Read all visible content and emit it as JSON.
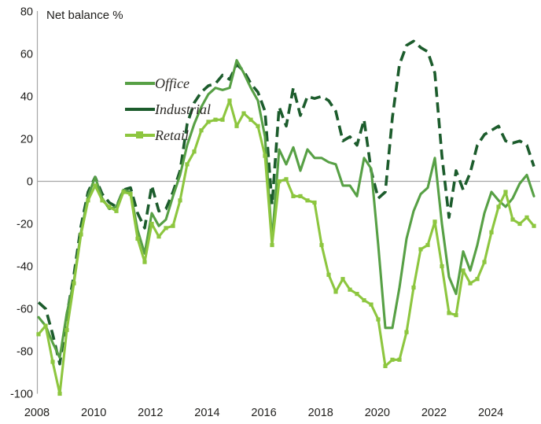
{
  "chart_data": {
    "type": "line",
    "title": "Net balance %",
    "frequency": "quarterly",
    "start_quarter": "2008 Q1",
    "end_quarter": "2025 Q3",
    "grid": "zero-line-only",
    "legend_position": "upper-left-inside",
    "colors": {
      "office": "#57a045",
      "industrial": "#1c5c2c",
      "retail": "#8dc63f",
      "axis": "#a6a6a6",
      "text": "#1f1e1c"
    },
    "x_axis": {
      "tick_years": [
        2008,
        2010,
        2012,
        2014,
        2016,
        2018,
        2020,
        2022,
        2024
      ]
    },
    "y_axis": {
      "ticks": [
        80,
        60,
        40,
        20,
        0,
        -20,
        -40,
        -60,
        -80,
        -100
      ],
      "ylim": [
        -100,
        80
      ]
    },
    "series": [
      {
        "name": "Office",
        "style": "solid",
        "color": "#57a045",
        "values": [
          -64,
          -68,
          -76,
          -83,
          -62,
          -47,
          -24,
          -7,
          2,
          -8,
          -13,
          -12,
          -4,
          -5,
          -23,
          -34,
          -15,
          -21,
          -18,
          -7,
          3,
          17,
          27,
          35,
          41,
          44,
          43,
          44,
          57,
          51,
          44,
          38,
          21,
          -28,
          15,
          8,
          16,
          5,
          15,
          11,
          11,
          9,
          8,
          -2,
          -2,
          -7,
          11,
          6,
          -30,
          -69,
          -69,
          -50,
          -27,
          -14,
          -6,
          -3,
          11,
          -20,
          -45,
          -53,
          -33,
          -42,
          -30,
          -15,
          -5,
          -9,
          -12,
          -8,
          -1,
          3,
          -7
        ]
      },
      {
        "name": "Industrial",
        "style": "dashed",
        "color": "#1c5c2c",
        "values": [
          -57,
          -60,
          -72,
          -86,
          -63,
          -44,
          -21,
          -5,
          2,
          -6,
          -10,
          -12,
          -4,
          -3,
          -15,
          -22,
          -2,
          -14,
          -13,
          -5,
          5,
          27,
          37,
          42,
          45,
          46,
          50,
          48,
          55,
          52,
          46,
          42,
          33,
          -11,
          35,
          26,
          44,
          31,
          40,
          39,
          40,
          38,
          33,
          19,
          21,
          17,
          29,
          5,
          -8,
          -5,
          30,
          55,
          64,
          66,
          63,
          61,
          51,
          12,
          -17,
          5,
          -4,
          4,
          17,
          22,
          24,
          26,
          19,
          18,
          19,
          17,
          7
        ]
      },
      {
        "name": "Retail",
        "style": "solid-square-markers",
        "color": "#8dc63f",
        "values": [
          -72,
          -68,
          -85,
          -100,
          -70,
          -48,
          -25,
          -9,
          -2,
          -9,
          -12,
          -14,
          -5,
          -6,
          -27,
          -38,
          -20,
          -26,
          -22,
          -21,
          -9,
          8,
          14,
          24,
          28,
          29,
          29,
          38,
          26,
          32,
          29,
          26,
          12,
          -30,
          0,
          1,
          -7,
          -7,
          -9,
          -10,
          -30,
          -44,
          -52,
          -46,
          -51,
          -53,
          -56,
          -58,
          -65,
          -87,
          -84,
          -84,
          -71,
          -50,
          -32,
          -30,
          -19,
          -40,
          -62,
          -63,
          -42,
          -48,
          -46,
          -38,
          -24,
          -12,
          -5,
          -18,
          -20,
          -17,
          -21
        ]
      }
    ]
  }
}
